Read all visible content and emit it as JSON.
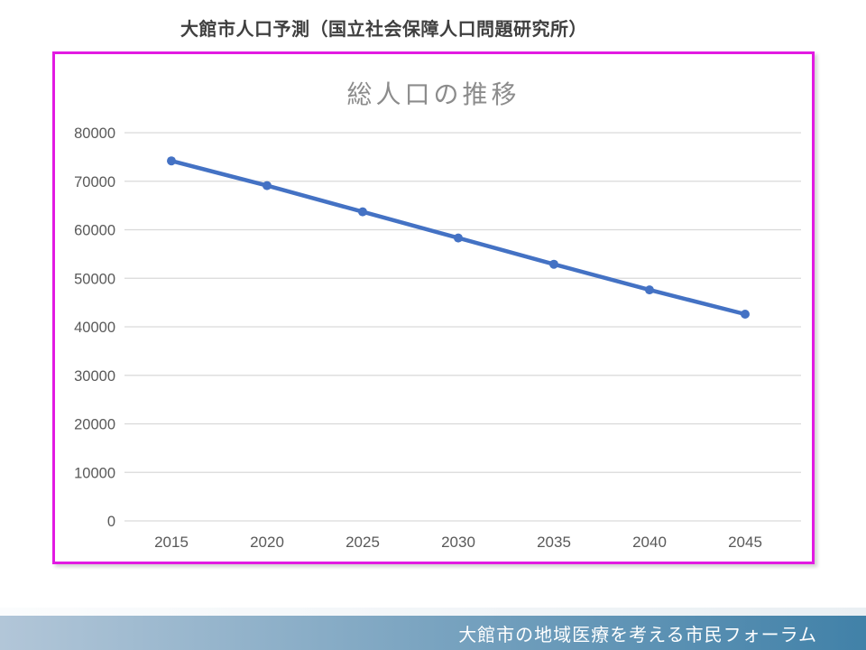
{
  "header": {
    "title": "大館市人口予測（国立社会保障人口問題研究所）"
  },
  "chart": {
    "border_color": "#e21ae2",
    "line_color": "#4472c4",
    "gridline_color": "#d9d9d9",
    "axis_label_color": "#595959",
    "title_color": "#8c8c8c"
  },
  "chart_data": {
    "type": "line",
    "title": "総人口の推移",
    "categories": [
      "2015",
      "2020",
      "2025",
      "2030",
      "2035",
      "2040",
      "2045"
    ],
    "series": [
      {
        "name": "総人口",
        "values": [
          74200,
          69100,
          63700,
          58300,
          52900,
          47600,
          42600
        ]
      }
    ],
    "xlabel": "",
    "ylabel": "",
    "ylim": [
      0,
      80000
    ],
    "ytick_interval": 10000,
    "yticks": [
      0,
      10000,
      20000,
      30000,
      40000,
      50000,
      60000,
      70000,
      80000
    ],
    "grid": true,
    "legend": "none",
    "marker": "circle"
  },
  "footer": {
    "text": "大館市の地域医療を考える市民フォーラム",
    "bar_gradient_left": "#b2c6d8",
    "bar_gradient_right": "#4181a8"
  }
}
